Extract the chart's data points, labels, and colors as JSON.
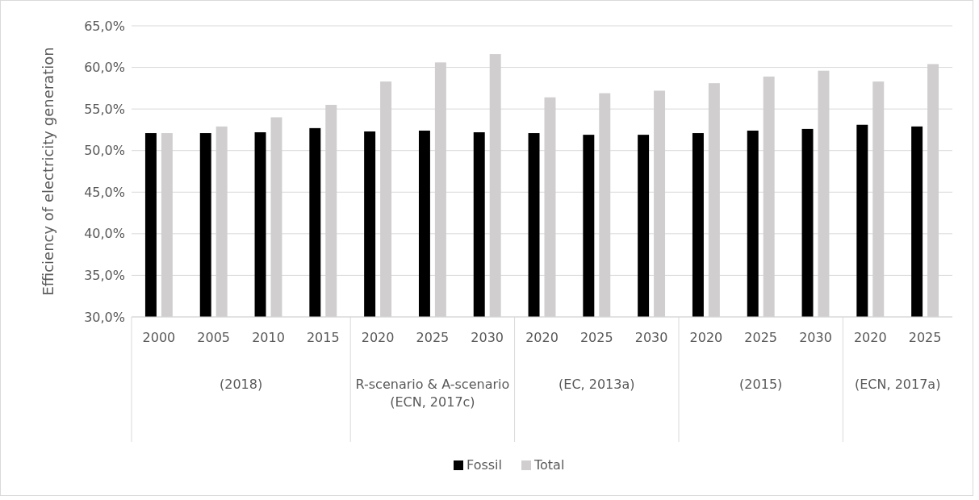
{
  "chart_data": {
    "type": "bar",
    "ylabel": "Efficiency of electricity generation",
    "categories": [
      "2000",
      "2005",
      "2010",
      "2015",
      "2020",
      "2025",
      "2030",
      "2020",
      "2025",
      "2030",
      "2020",
      "2025",
      "2030",
      "2020",
      "2025"
    ],
    "series": [
      {
        "name": "Fossil",
        "color": "#000000",
        "values": [
          52.1,
          52.1,
          52.2,
          52.7,
          52.3,
          52.4,
          52.2,
          52.1,
          51.9,
          51.9,
          52.1,
          52.4,
          52.6,
          53.1,
          52.9
        ]
      },
      {
        "name": "Total",
        "color": "#d0cecf",
        "values": [
          52.1,
          52.9,
          54.0,
          55.5,
          58.3,
          60.6,
          61.6,
          56.4,
          56.9,
          57.2,
          58.1,
          58.9,
          59.6,
          58.3,
          60.4
        ]
      }
    ],
    "ylim": [
      30,
      65
    ],
    "yticks": [
      {
        "value": 30,
        "label": "30,0%"
      },
      {
        "value": 35,
        "label": "35,0%"
      },
      {
        "value": 40,
        "label": "40,0%"
      },
      {
        "value": 45,
        "label": "45,0%"
      },
      {
        "value": 50,
        "label": "50,0%"
      },
      {
        "value": 55,
        "label": "55,0%"
      },
      {
        "value": 60,
        "label": "60,0%"
      },
      {
        "value": 65,
        "label": "65,0%"
      }
    ],
    "grid": "y",
    "legend": "bottom",
    "annotations": [
      "(2018)",
      "R-scenario & A-scenario (ECN, 2017c)",
      "(EC, 2013a)",
      "(2015)",
      "(ECN, 2017a)"
    ]
  }
}
